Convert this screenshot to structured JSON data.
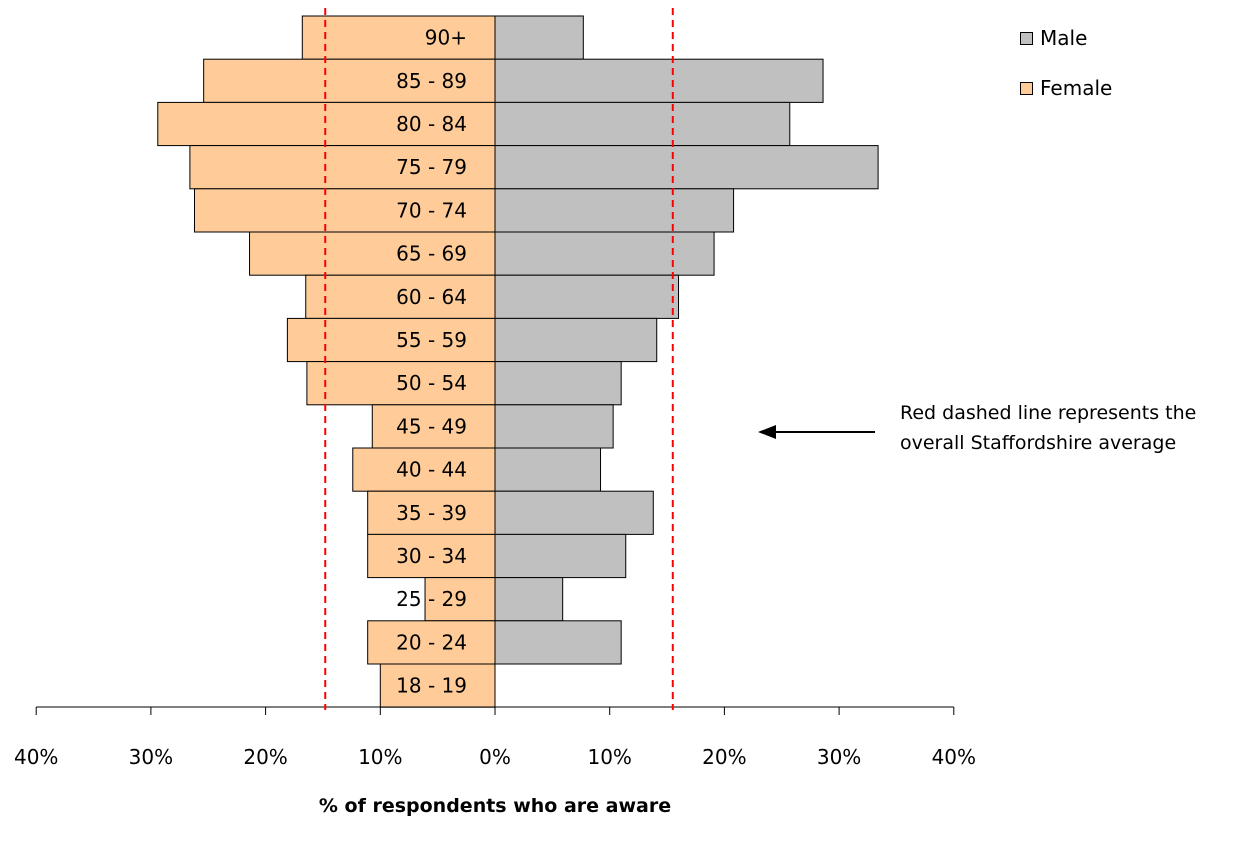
{
  "chart_data": {
    "type": "bar",
    "orientation": "horizontal-pyramid",
    "categories": [
      "90+",
      "85 - 89",
      "80 - 84",
      "75 - 79",
      "70 - 74",
      "65 - 69",
      "60 - 64",
      "55 - 59",
      "50 - 54",
      "45 - 49",
      "40 - 44",
      "35 - 39",
      "30 - 34",
      "25 - 29",
      "20 - 24",
      "18 - 19"
    ],
    "series": [
      {
        "name": "Male",
        "color": "#c0c0c0",
        "values": [
          7.7,
          28.6,
          25.7,
          33.4,
          20.8,
          19.1,
          16.0,
          14.1,
          11.0,
          10.3,
          9.2,
          13.8,
          11.4,
          5.9,
          11.0,
          0
        ]
      },
      {
        "name": "Female",
        "color": "#ffcc99",
        "values": [
          16.8,
          25.4,
          29.4,
          26.6,
          26.2,
          21.4,
          16.5,
          18.1,
          16.4,
          10.7,
          12.4,
          11.1,
          11.1,
          6.1,
          11.1,
          10.0
        ]
      }
    ],
    "xlim": [
      -40,
      40
    ],
    "ticks": [
      -40,
      -30,
      -20,
      -10,
      0,
      10,
      20,
      30,
      40
    ],
    "tick_labels": [
      "40%",
      "30%",
      "20%",
      "10%",
      "0%",
      "10%",
      "20%",
      "30%",
      "40%"
    ],
    "reference_lines": {
      "female_average": 14.8,
      "male_average": 15.5,
      "color": "#ff0000",
      "style": "dashed"
    },
    "xlabel": "% of respondents who are aware",
    "ylabel": "",
    "title": "",
    "legend_position": "top-right",
    "annotation": "Red dashed line represents the overall Staffordshire average"
  }
}
